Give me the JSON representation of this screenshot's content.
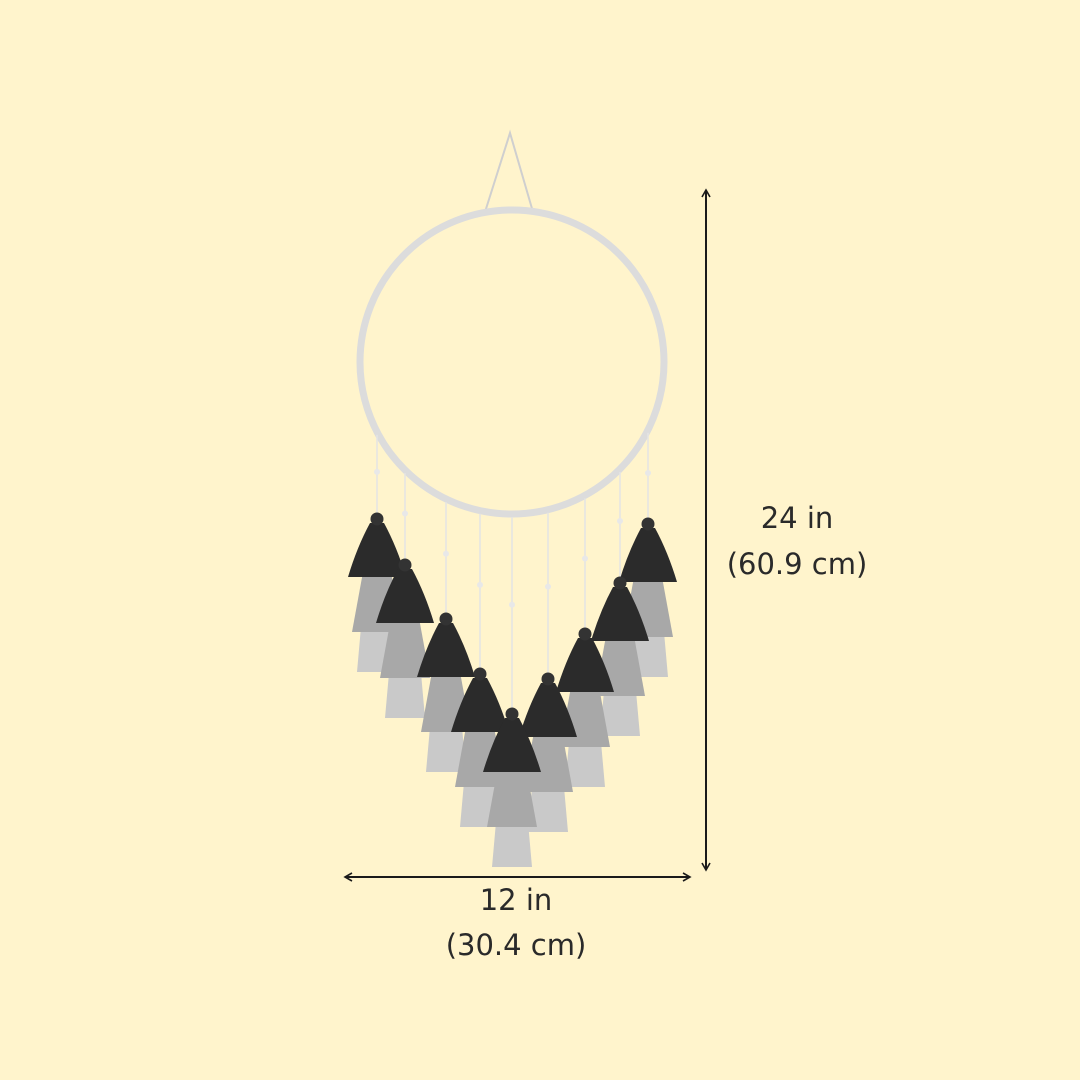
{
  "height": {
    "imperial": "24 in",
    "metric": "(60.9 cm)"
  },
  "width": {
    "imperial": "12 in",
    "metric": "(30.4 cm)"
  }
}
